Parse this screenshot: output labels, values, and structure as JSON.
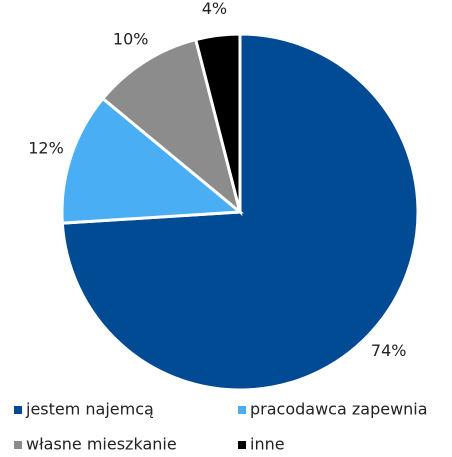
{
  "chart_data": {
    "type": "pie",
    "categories": [
      "jestem najemcą",
      "pracodawca zapewnia",
      "własne mieszkanie",
      "inne"
    ],
    "values": [
      74,
      12,
      10,
      4
    ],
    "value_labels": [
      "74%",
      "12%",
      "10%",
      "4%"
    ],
    "colors": [
      "#004b93",
      "#4aaef5",
      "#8c8c8c",
      "#000000"
    ],
    "start_angle": "top",
    "direction": "clockwise",
    "legend": "bottom"
  }
}
